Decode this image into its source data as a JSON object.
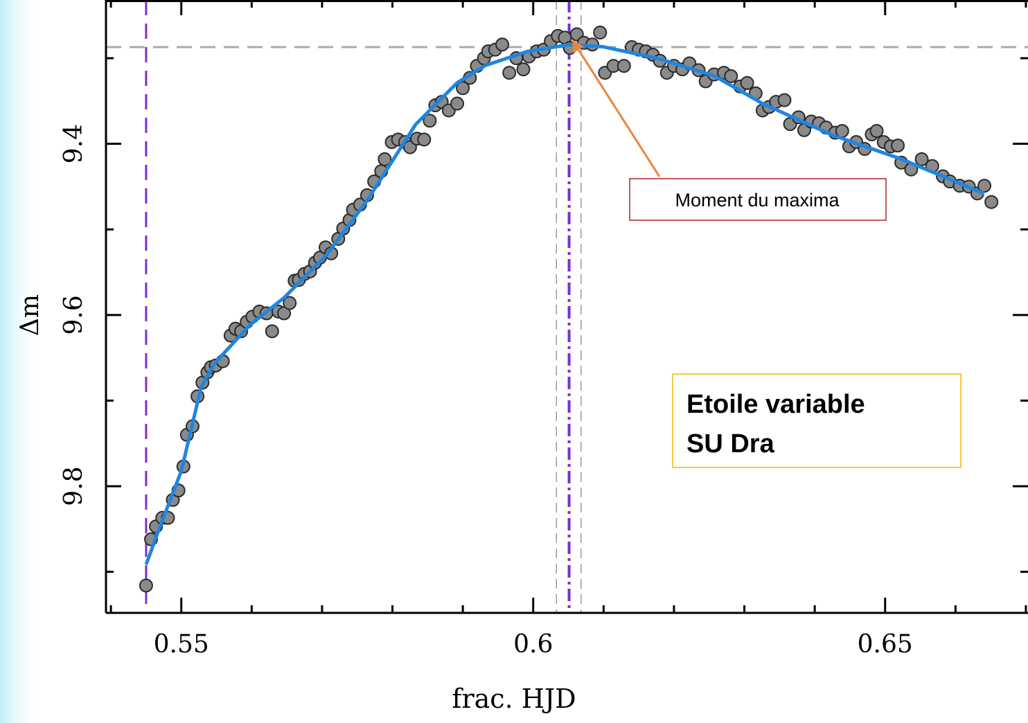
{
  "chart_data": {
    "type": "scatter",
    "xlabel": "frac. HJD",
    "ylabel": "Δm",
    "xlim": [
      0.5393,
      0.6703
    ],
    "ylim": [
      9.948,
      9.232
    ],
    "xticks": [
      0.55,
      0.6,
      0.65
    ],
    "yticks": [
      9.4,
      9.6,
      9.8
    ],
    "xminor_ticks": [
      0.54,
      0.56,
      0.57,
      0.58,
      0.59,
      0.61,
      0.62,
      0.63,
      0.64,
      0.66,
      0.67
    ],
    "yminor_ticks": [
      9.3,
      9.5,
      9.7,
      9.9
    ],
    "inverted_y": true,
    "point_color": "#8a8a8a",
    "x": [
      0.545,
      0.5457,
      0.5464,
      0.5473,
      0.5481,
      0.5488,
      0.5496,
      0.5503,
      0.5508,
      0.5516,
      0.5523,
      0.553,
      0.5537,
      0.5542,
      0.5549,
      0.5559,
      0.557,
      0.5577,
      0.5585,
      0.5593,
      0.5601,
      0.5611,
      0.5621,
      0.5629,
      0.5638,
      0.5646,
      0.5654,
      0.5661,
      0.5667,
      0.5675,
      0.5683,
      0.569,
      0.5697,
      0.5705,
      0.5713,
      0.5723,
      0.573,
      0.5739,
      0.5744,
      0.5754,
      0.5764,
      0.5774,
      0.5784,
      0.5789,
      0.5799,
      0.5808,
      0.5818,
      0.5825,
      0.5835,
      0.5845,
      0.5853,
      0.5861,
      0.587,
      0.588,
      0.5892,
      0.59,
      0.591,
      0.592,
      0.593,
      0.5936,
      0.5946,
      0.5956,
      0.5966,
      0.5976,
      0.5986,
      0.5994,
      0.6005,
      0.6015,
      0.6025,
      0.6035,
      0.6045,
      0.6052,
      0.6062,
      0.6072,
      0.6084,
      0.6095,
      0.6102,
      0.6114,
      0.6129,
      0.614,
      0.615,
      0.616,
      0.617,
      0.618,
      0.619,
      0.62,
      0.6212,
      0.6222,
      0.6235,
      0.6245,
      0.6257,
      0.6271,
      0.6281,
      0.6294,
      0.6304,
      0.6316,
      0.6326,
      0.6335,
      0.6345,
      0.6357,
      0.6365,
      0.6377,
      0.6385,
      0.6395,
      0.6406,
      0.6416,
      0.6429,
      0.6439,
      0.6449,
      0.6459,
      0.6471,
      0.6481,
      0.6488,
      0.6498,
      0.6508,
      0.6518,
      0.6523,
      0.6537,
      0.6552,
      0.6567,
      0.6582,
      0.6592,
      0.6606,
      0.6619,
      0.6631,
      0.6641,
      0.6651
    ],
    "values": [
      9.916,
      9.862,
      9.847,
      9.837,
      9.837,
      9.816,
      9.805,
      9.777,
      9.74,
      9.73,
      9.695,
      9.679,
      9.667,
      9.661,
      9.659,
      9.654,
      9.624,
      9.616,
      9.619,
      9.608,
      9.602,
      9.596,
      9.598,
      9.619,
      9.596,
      9.598,
      9.586,
      9.56,
      9.559,
      9.552,
      9.549,
      9.539,
      9.533,
      9.521,
      9.528,
      9.511,
      9.499,
      9.489,
      9.477,
      9.471,
      9.46,
      9.444,
      9.432,
      9.418,
      9.398,
      9.395,
      9.398,
      9.404,
      9.394,
      9.395,
      9.373,
      9.355,
      9.351,
      9.361,
      9.353,
      9.335,
      9.323,
      9.309,
      9.3,
      9.292,
      9.29,
      9.284,
      9.317,
      9.3,
      9.313,
      9.298,
      9.292,
      9.29,
      9.28,
      9.274,
      9.276,
      9.288,
      9.272,
      9.282,
      9.284,
      9.27,
      9.317,
      9.309,
      9.309,
      9.287,
      9.29,
      9.292,
      9.296,
      9.303,
      9.317,
      9.309,
      9.313,
      9.306,
      9.314,
      9.327,
      9.319,
      9.317,
      9.321,
      9.333,
      9.329,
      9.341,
      9.361,
      9.357,
      9.351,
      9.349,
      9.377,
      9.369,
      9.384,
      9.374,
      9.376,
      9.381,
      9.387,
      9.385,
      9.403,
      9.398,
      9.406,
      9.389,
      9.385,
      9.398,
      9.403,
      9.402,
      9.422,
      9.43,
      9.418,
      9.426,
      9.438,
      9.444,
      9.449,
      9.45,
      9.458,
      9.449,
      9.468
    ],
    "fit": {
      "color": "#1f86e0",
      "x": [
        0.545,
        0.5468,
        0.55,
        0.5528,
        0.5547,
        0.5597,
        0.5646,
        0.5705,
        0.5764,
        0.5833,
        0.5892,
        0.5932,
        0.5991,
        0.605,
        0.6099,
        0.6178,
        0.6257,
        0.6326,
        0.6424,
        0.6523,
        0.6641
      ],
      "values": [
        9.8915,
        9.851,
        9.7822,
        9.685,
        9.6567,
        9.6121,
        9.5798,
        9.5312,
        9.4664,
        9.3773,
        9.3287,
        9.3085,
        9.2923,
        9.2842,
        9.2866,
        9.3004,
        9.3206,
        9.353,
        9.3895,
        9.4178,
        9.4583
      ]
    },
    "hlines": [
      {
        "value": 9.287,
        "color": "#aaaaaa",
        "style": "dashed"
      }
    ],
    "vlines": [
      {
        "value": 0.545,
        "color": "#7b2fd0",
        "style": "dashed"
      },
      {
        "value": 0.6033,
        "color": "#999999",
        "style": "thin-dashed"
      },
      {
        "value": 0.6068,
        "color": "#999999",
        "style": "thin-dashed"
      },
      {
        "value": 0.6051,
        "color": "#7b2fd0",
        "style": "dash-dot"
      }
    ],
    "annotations": [
      {
        "text": [
          "Moment du maxima"
        ],
        "border": "#b22222",
        "arrow_color": "#e8843c",
        "xy": [
          0.6052,
          9.276
        ]
      },
      {
        "text": [
          "Etoile variable",
          "SU Dra"
        ],
        "border": "#f2b705",
        "bold": true
      }
    ]
  }
}
